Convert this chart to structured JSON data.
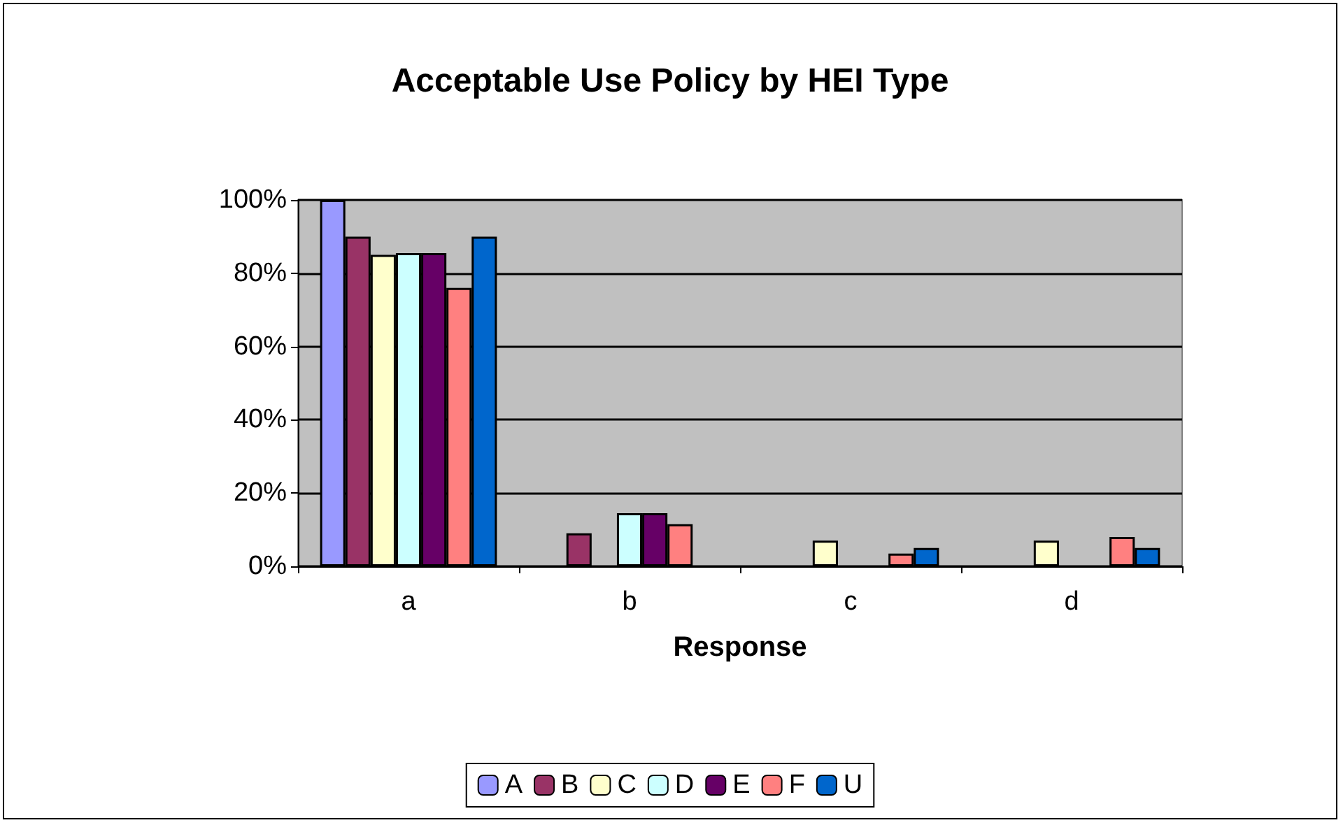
{
  "chart_data": {
    "type": "bar",
    "title": "Acceptable Use Policy by HEI Type",
    "xlabel": "Response",
    "categories": [
      "a",
      "b",
      "c",
      "d"
    ],
    "series": [
      {
        "name": "A",
        "color": "#9999ff",
        "values": [
          100,
          null,
          null,
          null
        ]
      },
      {
        "name": "B",
        "color": "#993366",
        "values": [
          90,
          9,
          null,
          null
        ]
      },
      {
        "name": "C",
        "color": "#ffffcc",
        "values": [
          85,
          null,
          7,
          7
        ]
      },
      {
        "name": "D",
        "color": "#ccffff",
        "values": [
          85.5,
          14.5,
          null,
          null
        ]
      },
      {
        "name": "E",
        "color": "#660066",
        "values": [
          85.5,
          14.5,
          null,
          null
        ]
      },
      {
        "name": "F",
        "color": "#ff8080",
        "values": [
          76,
          11.5,
          3.5,
          8
        ]
      },
      {
        "name": "U",
        "color": "#0066cc",
        "values": [
          90,
          null,
          5,
          5
        ]
      }
    ],
    "ylim": [
      0,
      100
    ],
    "yticks": [
      {
        "value": 0,
        "label": "0%"
      },
      {
        "value": 20,
        "label": "20%"
      },
      {
        "value": 40,
        "label": "40%"
      },
      {
        "value": 60,
        "label": "60%"
      },
      {
        "value": 80,
        "label": "80%"
      },
      {
        "value": 100,
        "label": "100%"
      }
    ],
    "grid": "y",
    "legend": "bottom"
  }
}
